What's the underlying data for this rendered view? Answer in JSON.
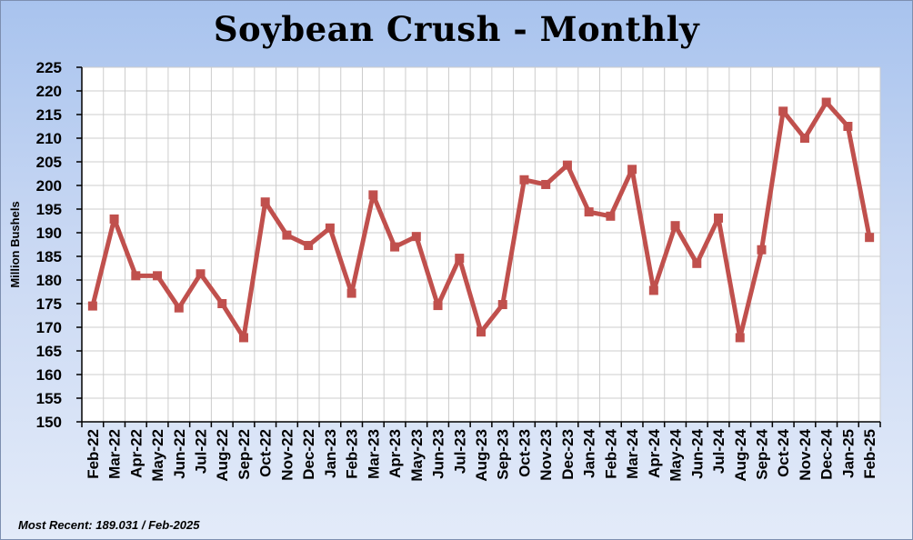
{
  "title": "Soybean Crush - Monthly",
  "footer": {
    "label": "Most Recent:",
    "value": "189.031",
    "date": "/ Feb-2025"
  },
  "colors": {
    "series": "#c0504d",
    "grid": "#cccccc",
    "plot_bg": "#ffffff"
  },
  "chart_data": {
    "type": "line",
    "title": "Soybean Crush - Monthly",
    "xlabel": "",
    "ylabel": "Million Bushels",
    "ylim": [
      150,
      225
    ],
    "yticks": [
      150,
      155,
      160,
      165,
      170,
      175,
      180,
      185,
      190,
      195,
      200,
      205,
      210,
      215,
      220,
      225
    ],
    "grid": true,
    "legend": "none",
    "categories": [
      "Feb-22",
      "Mar-22",
      "Apr-22",
      "May-22",
      "Jun-22",
      "Jul-22",
      "Aug-22",
      "Sep-22",
      "Oct-22",
      "Nov-22",
      "Dec-22",
      "Jan-23",
      "Feb-23",
      "Mar-23",
      "Apr-23",
      "May-23",
      "Jun-23",
      "Jul-23",
      "Aug-23",
      "Sep-23",
      "Oct-23",
      "Nov-23",
      "Dec-23",
      "Jan-24",
      "Feb-24",
      "Mar-24",
      "Apr-24",
      "May-24",
      "Jun-24",
      "Jul-24",
      "Aug-24",
      "Sep-24",
      "Oct-24",
      "Nov-24",
      "Dec-24",
      "Jan-25",
      "Feb-25"
    ],
    "x_tick_labels": [
      "Feb-22",
      "Mar-22",
      "Apr-22",
      "May-22",
      "Jun-22",
      "Jul-22",
      "Aug-22",
      "Sep-22",
      "Oct-22",
      "Nov-22",
      "Dec-22",
      "Jan-23",
      "Feb-23",
      "Mar-23",
      "Apr-23",
      "May-23",
      "Jun-23",
      "Jul-23",
      "Aug-23",
      "Sep-23",
      "Oct-23",
      "Nov-23",
      "Dec-23",
      "Jan-24",
      "Feb-24",
      "Mar-24",
      "Apr-24",
      "May-24",
      "Jun-24",
      "Jul-24",
      "Aug-24",
      "Sep-24",
      "Oct-24",
      "Nov-24",
      "Dec-24",
      "Jan-25",
      "Feb-25"
    ],
    "series": [
      {
        "values": [
          174.5,
          192.9,
          180.9,
          180.9,
          174.1,
          181.3,
          175.0,
          167.8,
          196.5,
          189.5,
          187.3,
          191.0,
          177.2,
          198.0,
          187.0,
          189.2,
          174.6,
          184.6,
          169.0,
          174.8,
          201.2,
          200.2,
          204.3,
          194.4,
          193.5,
          203.4,
          177.8,
          191.5,
          183.5,
          193.1,
          167.8,
          186.4,
          215.7,
          210.0,
          217.6,
          212.5,
          189.0
        ]
      }
    ]
  }
}
